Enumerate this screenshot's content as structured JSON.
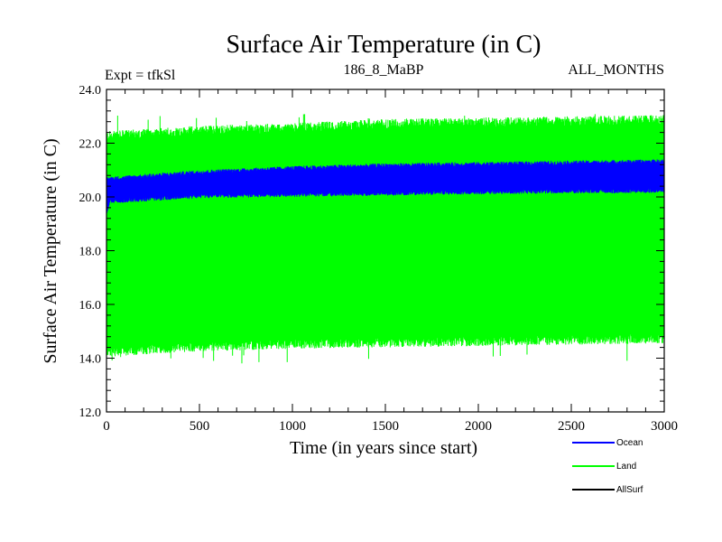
{
  "chart_data": {
    "type": "line",
    "title": "Surface Air Temperature (in C)",
    "subtitle_left": "Expt = tfkSl",
    "subtitle_center": "186_8_MaBP",
    "subtitle_right": "ALL_MONTHS",
    "xlabel": "Time (in years since start)",
    "ylabel": "Surface Air Temperature (in C)",
    "xlim": [
      0,
      3000
    ],
    "ylim": [
      12.0,
      24.0
    ],
    "x_ticks": [
      "0",
      "500",
      "1000",
      "1500",
      "2000",
      "2500",
      "3000"
    ],
    "y_ticks": [
      "12.0",
      "14.0",
      "16.0",
      "18.0",
      "20.0",
      "22.0",
      "24.0"
    ],
    "series": [
      {
        "name": "Land",
        "color": "#00ff00",
        "x": [
          0,
          500,
          1000,
          1500,
          2000,
          2500,
          3000
        ],
        "upper": [
          22.1,
          22.3,
          22.4,
          22.55,
          22.6,
          22.65,
          22.7
        ],
        "lower": [
          14.4,
          14.6,
          14.7,
          14.75,
          14.8,
          14.85,
          14.9
        ],
        "min_spike": 13.8,
        "max_spike": 23.1
      },
      {
        "name": "Ocean",
        "color": "#0000ff",
        "x": [
          0,
          500,
          1000,
          1500,
          2000,
          2500,
          3000
        ],
        "upper": [
          20.6,
          20.85,
          21.0,
          21.1,
          21.15,
          21.2,
          21.25
        ],
        "lower": [
          19.9,
          20.1,
          20.15,
          20.2,
          20.25,
          20.28,
          20.3
        ]
      },
      {
        "name": "AllSurf",
        "color": "#000000",
        "x": [],
        "values": []
      }
    ],
    "legend": {
      "placement": "bottom-right",
      "entries": [
        "Ocean",
        "Land",
        "AllSurf"
      ]
    }
  }
}
